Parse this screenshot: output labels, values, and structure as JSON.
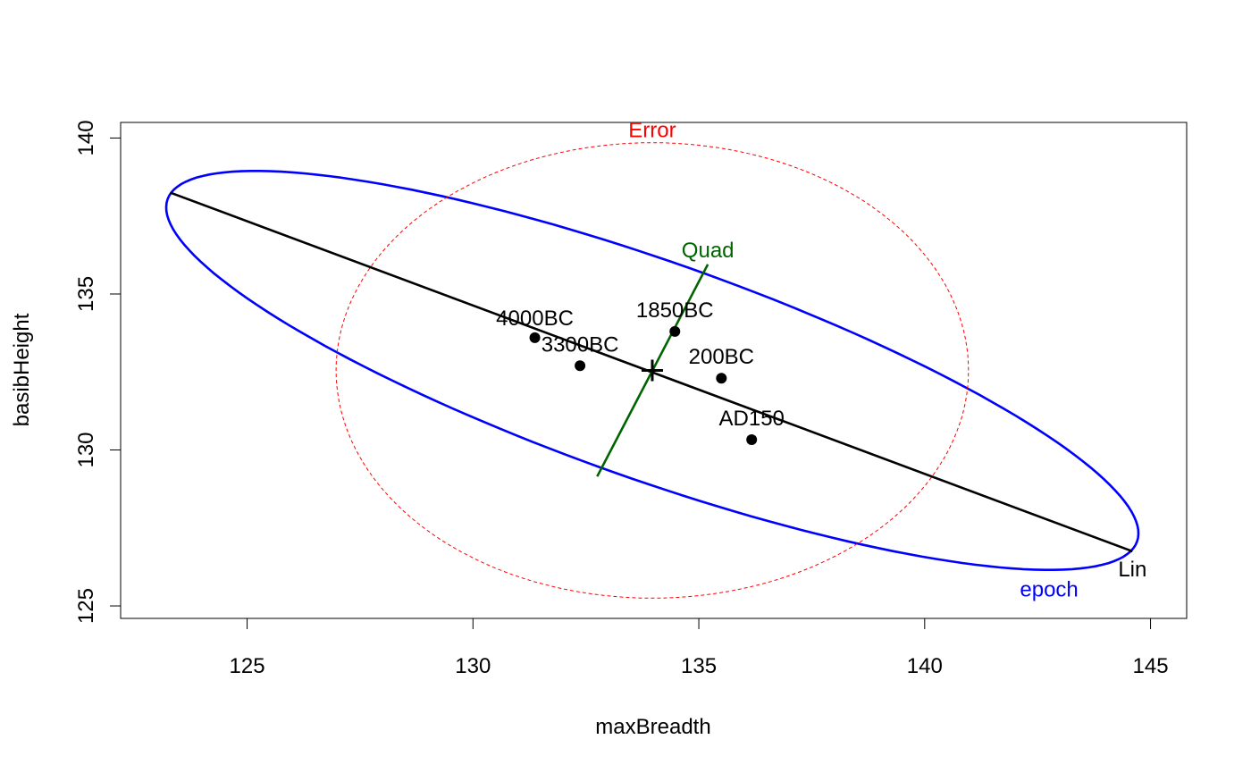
{
  "chart_data": {
    "type": "scatter",
    "title": "",
    "xlabel": "maxBreadth",
    "ylabel": "basibHeight",
    "xlim": [
      122.2,
      145.8
    ],
    "ylim": [
      124.6,
      140.5
    ],
    "x_ticks": [
      125,
      130,
      135,
      140,
      145
    ],
    "y_ticks": [
      125,
      130,
      135,
      140
    ],
    "x_tick_labels": [
      "125",
      "130",
      "135",
      "140",
      "145"
    ],
    "y_tick_labels": [
      "125",
      "130",
      "135",
      "140"
    ],
    "grid": false,
    "legend": "none",
    "points": [
      {
        "label": "4000BC",
        "x": 131.37,
        "y": 133.6
      },
      {
        "label": "3300BC",
        "x": 132.37,
        "y": 132.7
      },
      {
        "label": "1850BC",
        "x": 134.47,
        "y": 133.8
      },
      {
        "label": "200BC",
        "x": 135.5,
        "y": 132.3
      },
      {
        "label": "AD150",
        "x": 136.17,
        "y": 130.33
      }
    ],
    "centroid": {
      "x": 133.97,
      "y": 132.55
    },
    "annotations": [
      {
        "label": "epoch",
        "kind": "ellipse",
        "color": "#0000ff",
        "center": [
          133.97,
          132.55
        ],
        "axis1": [
          10.65,
          -5.7
        ],
        "axis2": [
          1.55,
          2.9
        ]
      },
      {
        "label": "Error",
        "kind": "ellipse",
        "color": "#ff0000",
        "dashed": true,
        "center": [
          133.97,
          132.55
        ],
        "axis1": [
          7.0,
          0.0
        ],
        "axis2": [
          0.0,
          7.3
        ]
      },
      {
        "label": "Lin",
        "kind": "line",
        "color": "#000000",
        "from": [
          123.3,
          138.25
        ],
        "to": [
          144.6,
          126.75
        ]
      },
      {
        "label": "Quad",
        "kind": "line",
        "color": "#006400",
        "from": [
          132.75,
          129.15
        ],
        "to": [
          135.2,
          135.95
        ]
      }
    ]
  }
}
